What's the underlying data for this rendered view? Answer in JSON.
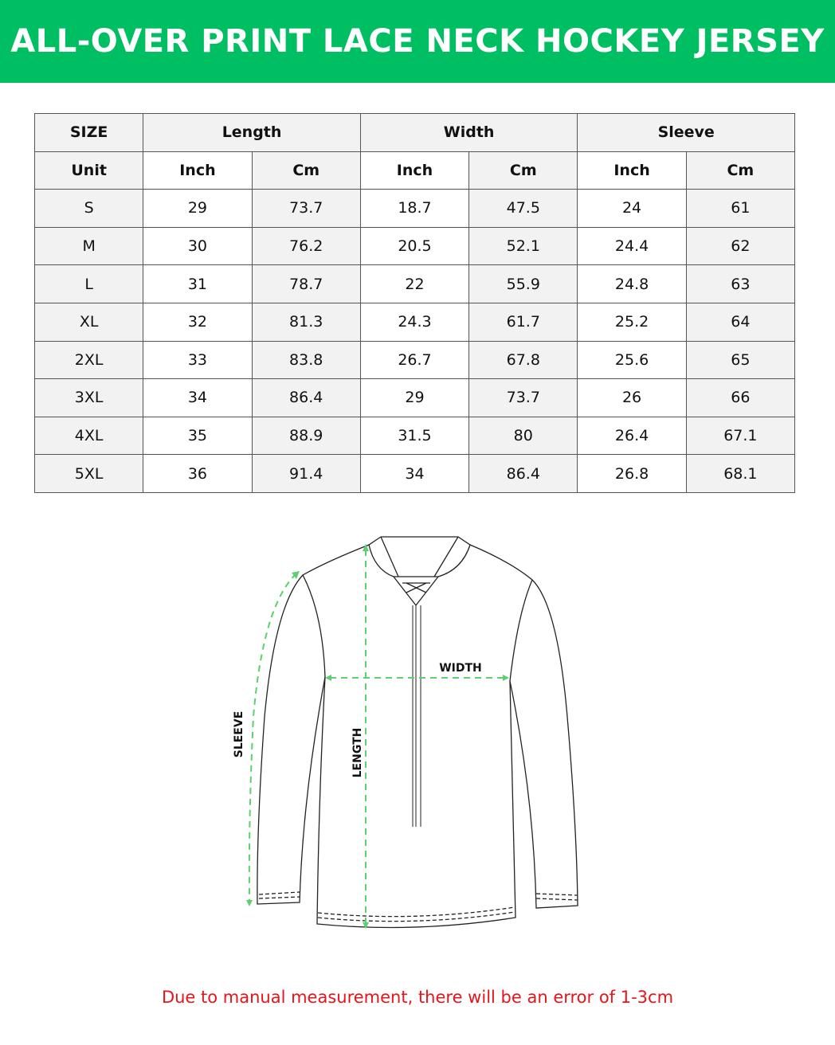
{
  "title": "ALL-OVER PRINT LACE NECK HOCKEY JERSEY",
  "table": {
    "group_headers": [
      "SIZE",
      "Length",
      "Width",
      "Sleeve"
    ],
    "unit_row": [
      "Unit",
      "Inch",
      "Cm",
      "Inch",
      "Cm",
      "Inch",
      "Cm"
    ],
    "rows": [
      [
        "S",
        "29",
        "73.7",
        "18.7",
        "47.5",
        "24",
        "61"
      ],
      [
        "M",
        "30",
        "76.2",
        "20.5",
        "52.1",
        "24.4",
        "62"
      ],
      [
        "L",
        "31",
        "78.7",
        "22",
        "55.9",
        "24.8",
        "63"
      ],
      [
        "XL",
        "32",
        "81.3",
        "24.3",
        "61.7",
        "25.2",
        "64"
      ],
      [
        "2XL",
        "33",
        "83.8",
        "26.7",
        "67.8",
        "25.6",
        "65"
      ],
      [
        "3XL",
        "34",
        "86.4",
        "29",
        "73.7",
        "26",
        "66"
      ],
      [
        "4XL",
        "35",
        "88.9",
        "31.5",
        "80",
        "26.4",
        "67.1"
      ],
      [
        "5XL",
        "36",
        "91.4",
        "34",
        "86.4",
        "26.8",
        "68.1"
      ]
    ]
  },
  "diagram": {
    "labels": {
      "sleeve": "SLEEVE",
      "length": "LENGTH",
      "width": "WIDTH"
    },
    "measure_color": "#5ccf6f"
  },
  "note": "Due to manual measurement, there will be an error of 1-3cm",
  "colors": {
    "banner": "#00bf63",
    "note": "#e8141b"
  }
}
